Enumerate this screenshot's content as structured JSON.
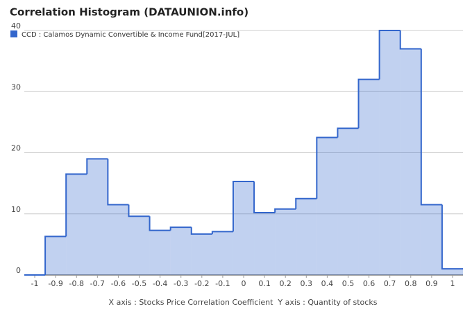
{
  "chart_data": {
    "type": "histogram",
    "title": "Correlation Histogram (DATAUNION.info)",
    "xlabel": "X axis : Stocks Price Correlation Coefficient  Y axis : Quantity of stocks",
    "series": [
      {
        "name": "CCD : Calamos Dynamic Convertible & Income Fund[2017-JUL]",
        "color": "#3366cc",
        "counts": [
          0,
          6.3,
          16.5,
          19,
          11.5,
          9.6,
          7.3,
          7.8,
          6.7,
          7.1,
          15.3,
          10.2,
          10.8,
          12.5,
          22.5,
          24,
          32,
          40,
          37,
          11.5,
          1
        ]
      }
    ],
    "bins": [
      -1.05,
      -0.95,
      -0.85,
      -0.75,
      -0.65,
      -0.55,
      -0.45,
      -0.35,
      -0.25,
      -0.15,
      -0.05,
      0.05,
      0.15,
      0.25,
      0.35,
      0.45,
      0.55,
      0.65,
      0.75,
      0.85,
      0.95,
      1.05
    ],
    "xlim": [
      -1.05,
      1.05
    ],
    "xticks": [
      -1,
      -0.9,
      -0.8,
      -0.7,
      -0.6,
      -0.5,
      -0.4,
      -0.3,
      -0.2,
      -0.1,
      0,
      0.1,
      0.2,
      0.3,
      0.4,
      0.5,
      0.6,
      0.7,
      0.8,
      0.9,
      1
    ],
    "ylim": [
      0,
      40
    ],
    "yticks": [
      0,
      10,
      20,
      30,
      40
    ],
    "grid": true,
    "legend": "top-left"
  }
}
